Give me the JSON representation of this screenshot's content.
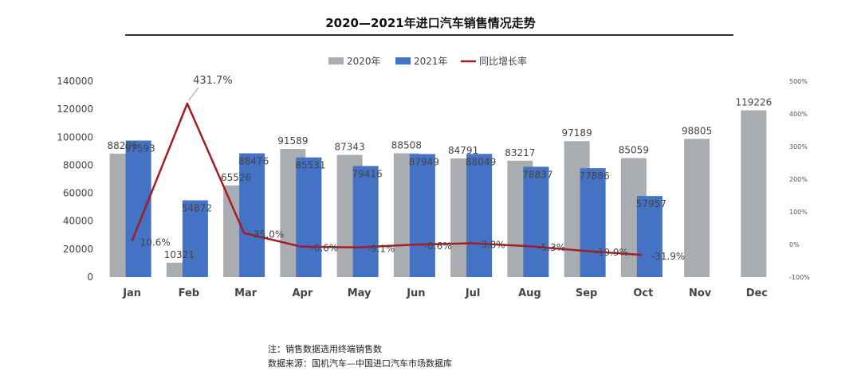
{
  "title": "2020—2021年进口汽车销售情况走势",
  "notes": {
    "note1": "注：销售数据选用终端销售数",
    "note2": "数据来源：国机汽车—中国进口汽车市场数据库"
  },
  "colors": {
    "series2020": "#a9adb1",
    "series2021": "#4472c4",
    "growth": "#a51d24"
  },
  "chart_data": {
    "type": "bar",
    "categories": [
      "Jan",
      "Feb",
      "Mar",
      "Apr",
      "May",
      "Jun",
      "Jul",
      "Aug",
      "Sep",
      "Oct",
      "Nov",
      "Dec"
    ],
    "series": [
      {
        "name": "2020年",
        "type": "bar",
        "axis": "left",
        "values": [
          88206,
          10321,
          65526,
          91589,
          87343,
          88508,
          84791,
          83217,
          97189,
          85059,
          98805,
          119226
        ]
      },
      {
        "name": "2021年",
        "type": "bar",
        "axis": "left",
        "values": [
          97593,
          54872,
          88476,
          85531,
          79416,
          87949,
          88049,
          78837,
          77886,
          57957,
          null,
          null
        ]
      },
      {
        "name": "同比增长率",
        "type": "line",
        "axis": "right",
        "values": [
          10.6,
          431.7,
          35.0,
          -6.6,
          -9.1,
          -0.6,
          3.8,
          -5.3,
          -19.9,
          -31.9,
          null,
          null
        ],
        "labels": [
          "10.6%",
          "431.7%",
          "35.0%",
          "-6.6%",
          "-9.1%",
          "-0.6%",
          "3.8%",
          "-5.3%",
          "-19.9%",
          "-31.9%",
          null,
          null
        ]
      }
    ],
    "y_left": {
      "ylim": [
        0,
        140000
      ],
      "ticks": [
        0,
        20000,
        40000,
        60000,
        80000,
        100000,
        120000,
        140000
      ]
    },
    "y_right": {
      "ylim": [
        -100,
        500
      ],
      "ticks": [
        "-100%",
        "0%",
        "100%",
        "200%",
        "300%",
        "400%",
        "500%"
      ]
    },
    "legend": "top-center",
    "grid": false
  }
}
